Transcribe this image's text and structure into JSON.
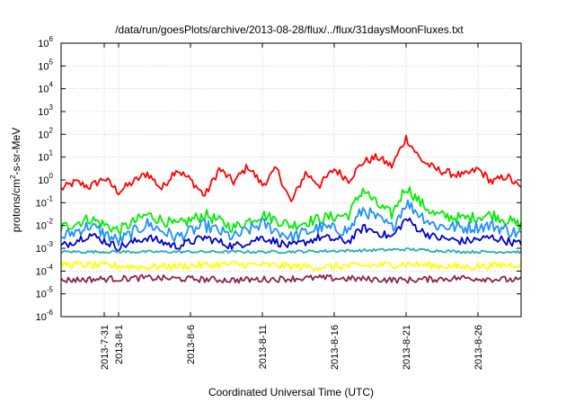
{
  "chart_data": {
    "type": "line",
    "title": "/data/run/goesPlots/archive/2013-08-28/flux/../flux/31daysMoonFluxes.txt",
    "xlabel": "Coordinated Universal Time (UTC)",
    "ylabel": {
      "pre": "protons/cm",
      "sup": "2",
      "post": "-s-sr-MeV"
    },
    "yscale": "log",
    "ylim": [
      1e-06,
      1000000.0
    ],
    "xlim": [
      "2013-07-28",
      "2013-08-29"
    ],
    "grid": true,
    "y_ticks": [
      {
        "value": 1e-06,
        "base": "10",
        "exp": "-6"
      },
      {
        "value": 1e-05,
        "base": "10",
        "exp": "-5"
      },
      {
        "value": 0.0001,
        "base": "10",
        "exp": "-4"
      },
      {
        "value": 0.001,
        "base": "10",
        "exp": "-3"
      },
      {
        "value": 0.01,
        "base": "10",
        "exp": "-2"
      },
      {
        "value": 0.1,
        "base": "10",
        "exp": "-1"
      },
      {
        "value": 1,
        "base": "10",
        "exp": "0"
      },
      {
        "value": 10,
        "base": "10",
        "exp": "1"
      },
      {
        "value": 100,
        "base": "10",
        "exp": "2"
      },
      {
        "value": 1000,
        "base": "10",
        "exp": "3"
      },
      {
        "value": 10000,
        "base": "10",
        "exp": "4"
      },
      {
        "value": 100000,
        "base": "10",
        "exp": "5"
      },
      {
        "value": 1000000,
        "base": "10",
        "exp": "6"
      }
    ],
    "x_ticks": [
      {
        "date": "2013-07-31",
        "label": "2013-7-31"
      },
      {
        "date": "2013-08-01",
        "label": "2013-8-1"
      },
      {
        "date": "2013-08-06",
        "label": "2013-8-6"
      },
      {
        "date": "2013-08-11",
        "label": "2013-8-11"
      },
      {
        "date": "2013-08-16",
        "label": "2013-8-16"
      },
      {
        "date": "2013-08-21",
        "label": "2013-8-21"
      },
      {
        "date": "2013-08-26",
        "label": "2013-8-26"
      }
    ],
    "series": [
      {
        "color": "#ff0000",
        "points": [
          [
            "2013-07-28",
            0.4
          ],
          [
            "2013-07-29",
            0.8
          ],
          [
            "2013-07-30",
            0.5
          ],
          [
            "2013-07-31",
            1.2
          ],
          [
            "2013-08-01",
            0.3
          ],
          [
            "2013-08-02",
            0.8
          ],
          [
            "2013-08-03",
            2.0
          ],
          [
            "2013-08-04",
            0.4
          ],
          [
            "2013-08-05",
            3.0
          ],
          [
            "2013-08-06",
            1.0
          ],
          [
            "2013-08-07",
            0.2
          ],
          [
            "2013-08-08",
            3.0
          ],
          [
            "2013-08-09",
            0.8
          ],
          [
            "2013-08-10",
            4.0
          ],
          [
            "2013-08-11",
            0.6
          ],
          [
            "2013-08-12",
            3.0
          ],
          [
            "2013-08-13",
            0.1
          ],
          [
            "2013-08-14",
            2.0
          ],
          [
            "2013-08-15",
            0.6
          ],
          [
            "2013-08-16",
            3.0
          ],
          [
            "2013-08-17",
            1.0
          ],
          [
            "2013-08-18",
            6.0
          ],
          [
            "2013-08-19",
            10.0
          ],
          [
            "2013-08-20",
            4.0
          ],
          [
            "2013-08-21",
            70.0
          ],
          [
            "2013-08-22",
            8.0
          ],
          [
            "2013-08-23",
            3.0
          ],
          [
            "2013-08-24",
            2.0
          ],
          [
            "2013-08-25",
            1.5
          ],
          [
            "2013-08-26",
            3.0
          ],
          [
            "2013-08-27",
            0.8
          ],
          [
            "2013-08-28",
            1.5
          ],
          [
            "2013-08-29",
            0.4
          ]
        ]
      },
      {
        "color": "#00ee00",
        "points": [
          [
            "2013-07-28",
            0.008
          ],
          [
            "2013-07-30",
            0.02
          ],
          [
            "2013-08-01",
            0.006
          ],
          [
            "2013-08-03",
            0.03
          ],
          [
            "2013-08-05",
            0.01
          ],
          [
            "2013-08-07",
            0.03
          ],
          [
            "2013-08-09",
            0.008
          ],
          [
            "2013-08-11",
            0.03
          ],
          [
            "2013-08-13",
            0.01
          ],
          [
            "2013-08-15",
            0.02
          ],
          [
            "2013-08-17",
            0.03
          ],
          [
            "2013-08-18",
            0.4
          ],
          [
            "2013-08-19",
            0.08
          ],
          [
            "2013-08-20",
            0.03
          ],
          [
            "2013-08-21",
            0.5
          ],
          [
            "2013-08-22",
            0.1
          ],
          [
            "2013-08-23",
            0.03
          ],
          [
            "2013-08-25",
            0.02
          ],
          [
            "2013-08-27",
            0.03
          ],
          [
            "2013-08-29",
            0.01
          ]
        ]
      },
      {
        "color": "#1e90ff",
        "points": [
          [
            "2013-07-28",
            0.003
          ],
          [
            "2013-07-30",
            0.01
          ],
          [
            "2013-08-01",
            0.002
          ],
          [
            "2013-08-03",
            0.012
          ],
          [
            "2013-08-05",
            0.003
          ],
          [
            "2013-08-07",
            0.01
          ],
          [
            "2013-08-09",
            0.003
          ],
          [
            "2013-08-11",
            0.012
          ],
          [
            "2013-08-13",
            0.003
          ],
          [
            "2013-08-15",
            0.008
          ],
          [
            "2013-08-17",
            0.006
          ],
          [
            "2013-08-18",
            0.05
          ],
          [
            "2013-08-19",
            0.02
          ],
          [
            "2013-08-20",
            0.008
          ],
          [
            "2013-08-21",
            0.1
          ],
          [
            "2013-08-22",
            0.03
          ],
          [
            "2013-08-23",
            0.01
          ],
          [
            "2013-08-25",
            0.008
          ],
          [
            "2013-08-27",
            0.01
          ],
          [
            "2013-08-29",
            0.004
          ]
        ]
      },
      {
        "color": "#0000cc",
        "points": [
          [
            "2013-07-28",
            0.0012
          ],
          [
            "2013-07-30",
            0.004
          ],
          [
            "2013-08-01",
            0.0011
          ],
          [
            "2013-08-03",
            0.003
          ],
          [
            "2013-08-05",
            0.0012
          ],
          [
            "2013-08-07",
            0.003
          ],
          [
            "2013-08-09",
            0.0012
          ],
          [
            "2013-08-11",
            0.003
          ],
          [
            "2013-08-13",
            0.0012
          ],
          [
            "2013-08-15",
            0.003
          ],
          [
            "2013-08-17",
            0.002
          ],
          [
            "2013-08-18",
            0.008
          ],
          [
            "2013-08-19",
            0.005
          ],
          [
            "2013-08-20",
            0.003
          ],
          [
            "2013-08-21",
            0.02
          ],
          [
            "2013-08-22",
            0.006
          ],
          [
            "2013-08-23",
            0.003
          ],
          [
            "2013-08-25",
            0.002
          ],
          [
            "2013-08-27",
            0.003
          ],
          [
            "2013-08-29",
            0.0015
          ]
        ]
      },
      {
        "color": "#20b2aa",
        "points": [
          [
            "2013-07-28",
            0.0007
          ],
          [
            "2013-08-05",
            0.0007
          ],
          [
            "2013-08-12",
            0.0007
          ],
          [
            "2013-08-18",
            0.0008
          ],
          [
            "2013-08-21",
            0.0009
          ],
          [
            "2013-08-25",
            0.0007
          ],
          [
            "2013-08-29",
            0.0007
          ]
        ]
      },
      {
        "color": "#ffff00",
        "points": [
          [
            "2013-07-28",
            0.0002
          ],
          [
            "2013-08-03",
            0.00015
          ],
          [
            "2013-08-09",
            0.0002
          ],
          [
            "2013-08-15",
            0.00015
          ],
          [
            "2013-08-21",
            0.0002
          ],
          [
            "2013-08-25",
            0.00015
          ],
          [
            "2013-08-29",
            0.0002
          ]
        ]
      },
      {
        "color": "#8b2252",
        "points": [
          [
            "2013-07-28",
            4e-05
          ],
          [
            "2013-08-03",
            5e-05
          ],
          [
            "2013-08-09",
            4e-05
          ],
          [
            "2013-08-15",
            5e-05
          ],
          [
            "2013-08-21",
            4e-05
          ],
          [
            "2013-08-25",
            5e-05
          ],
          [
            "2013-08-29",
            4e-05
          ]
        ]
      }
    ]
  }
}
